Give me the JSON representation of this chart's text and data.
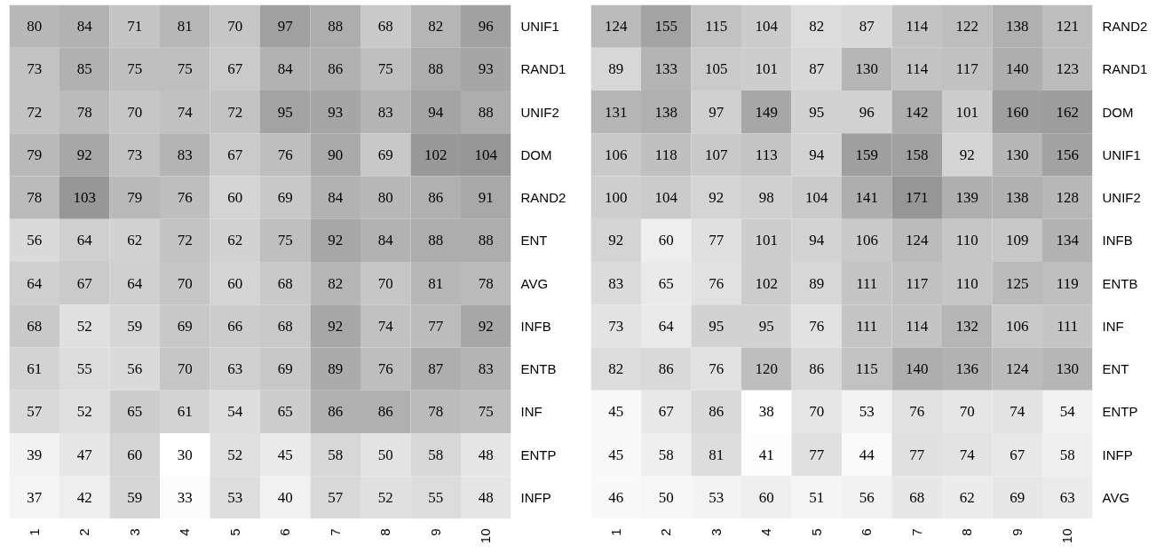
{
  "chart_data": [
    {
      "type": "heatmap",
      "data_labels": true,
      "categories": [
        "1",
        "2",
        "3",
        "4",
        "5",
        "6",
        "7",
        "8",
        "9",
        "10"
      ],
      "y_categories": [
        "UNIF1",
        "RAND1",
        "UNIF2",
        "DOM",
        "RAND2",
        "ENT",
        "AVG",
        "INFB",
        "ENTB",
        "INF",
        "ENTP",
        "INFP"
      ],
      "cells": [
        [
          80,
          84,
          71,
          81,
          70,
          97,
          88,
          68,
          82,
          96
        ],
        [
          73,
          85,
          75,
          75,
          67,
          84,
          86,
          75,
          88,
          93
        ],
        [
          72,
          78,
          70,
          74,
          72,
          95,
          93,
          83,
          94,
          88
        ],
        [
          79,
          92,
          73,
          83,
          67,
          76,
          90,
          69,
          102,
          104
        ],
        [
          78,
          103,
          79,
          76,
          60,
          69,
          84,
          80,
          86,
          91
        ],
        [
          56,
          64,
          62,
          72,
          62,
          75,
          92,
          84,
          88,
          88
        ],
        [
          64,
          67,
          64,
          70,
          60,
          68,
          82,
          70,
          81,
          78
        ],
        [
          68,
          52,
          59,
          69,
          66,
          68,
          92,
          74,
          77,
          92
        ],
        [
          61,
          55,
          56,
          70,
          63,
          69,
          89,
          76,
          87,
          83
        ],
        [
          57,
          52,
          65,
          61,
          54,
          65,
          86,
          86,
          78,
          75
        ],
        [
          39,
          47,
          60,
          30,
          52,
          45,
          58,
          50,
          58,
          48
        ],
        [
          37,
          42,
          59,
          33,
          53,
          40,
          57,
          52,
          55,
          48
        ]
      ]
    },
    {
      "type": "heatmap",
      "data_labels": true,
      "categories": [
        "1",
        "2",
        "3",
        "4",
        "5",
        "6",
        "7",
        "8",
        "9",
        "10"
      ],
      "y_categories": [
        "RAND2",
        "RAND1",
        "DOM",
        "UNIF1",
        "UNIF2",
        "INFB",
        "ENTB",
        "INF",
        "ENT",
        "ENTP",
        "INFP",
        "AVG"
      ],
      "cells": [
        [
          124,
          155,
          115,
          104,
          82,
          87,
          114,
          122,
          138,
          121
        ],
        [
          89,
          133,
          105,
          101,
          87,
          130,
          114,
          117,
          140,
          123
        ],
        [
          131,
          138,
          97,
          149,
          95,
          96,
          142,
          101,
          160,
          162
        ],
        [
          106,
          118,
          107,
          113,
          94,
          159,
          158,
          92,
          130,
          156
        ],
        [
          100,
          104,
          92,
          98,
          104,
          141,
          171,
          139,
          138,
          128
        ],
        [
          92,
          60,
          77,
          101,
          94,
          106,
          124,
          110,
          109,
          134
        ],
        [
          83,
          65,
          76,
          102,
          89,
          111,
          117,
          110,
          125,
          119
        ],
        [
          73,
          64,
          95,
          95,
          76,
          111,
          114,
          132,
          106,
          111
        ],
        [
          82,
          86,
          76,
          120,
          86,
          115,
          140,
          136,
          124,
          130
        ],
        [
          45,
          67,
          86,
          38,
          70,
          53,
          76,
          70,
          74,
          54
        ],
        [
          45,
          58,
          81,
          41,
          77,
          44,
          77,
          74,
          67,
          58
        ],
        [
          46,
          50,
          53,
          60,
          51,
          56,
          68,
          62,
          69,
          63
        ]
      ]
    }
  ]
}
